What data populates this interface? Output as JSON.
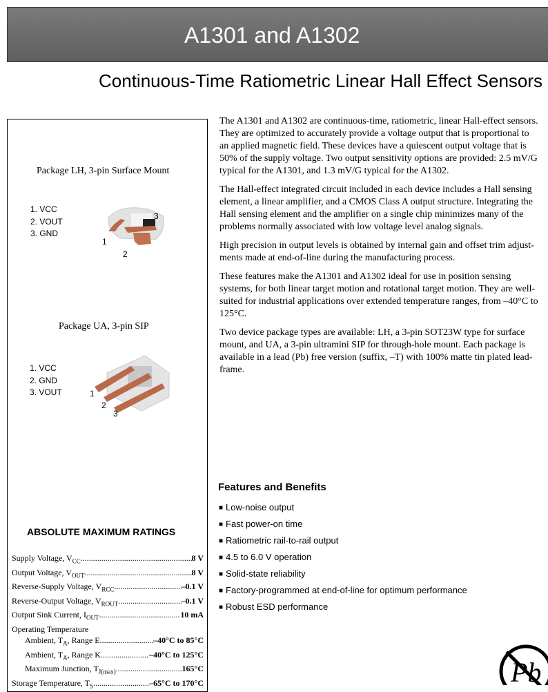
{
  "header": {
    "title": "A1301 and A1302"
  },
  "subtitle": "Continuous-Time Ratiometric Linear Hall Effect Sensors",
  "packages": [
    {
      "title": "Package LH, 3-pin Surface Mount",
      "pins": [
        "1. VCC",
        "2. VOUT",
        "3. GND"
      ],
      "pin_numbers": [
        "1",
        "2",
        "3"
      ]
    },
    {
      "title": "Package UA, 3-pin SIP",
      "pins": [
        "1. VCC",
        "2. GND",
        "3. VOUT"
      ],
      "pin_numbers": [
        "1",
        "2",
        "3"
      ]
    }
  ],
  "ratings": {
    "title": "ABSOLUTE MAXIMUM RATINGS",
    "rows": [
      {
        "label": "Supply Voltage, V",
        "sub": "CC",
        "value": "8 V"
      },
      {
        "label": "Output Voltage, V",
        "sub": "OUT",
        "value": "8 V"
      },
      {
        "label": "Reverse-Supply Voltage, V",
        "sub": "RCC",
        "value": "–0.1 V"
      },
      {
        "label": "Reverse-Output Voltage, V",
        "sub": "ROUT",
        "value": "–0.1 V"
      },
      {
        "label": "Output Sink Current, I",
        "sub": "OUT",
        "value": "10 mA"
      },
      {
        "label": "Operating Temperature"
      },
      {
        "label": "Ambient, T",
        "sub": "A",
        "suffix": ", Range E",
        "value": "–40°C to 85°C"
      },
      {
        "label": "Ambient, T",
        "sub": "A",
        "suffix": ", Range K",
        "value": "–40°C to 125°C"
      },
      {
        "label": "Maximum Junction, T",
        "sub": "J(max)",
        "value": "165°C"
      },
      {
        "label": "Storage Temperature, T",
        "sub": "S",
        "value": "–65°C to 170°C"
      }
    ]
  },
  "description": [
    [
      "The A1301 and A1302 are continuous-time, ratiometric, linear Hall-effect sensors.",
      "They are optimized to accurately provide a voltage output that is proportional to",
      "an applied magnetic field. These devices have a quiescent output voltage that is",
      "50% of the supply voltage. Two output sensitivity options are provided: 2.5 mV/G",
      "typical for the A1301, and 1.3 mV/G typical for the A1302."
    ],
    [
      "The Hall-effect integrated circuit included in each device includes a Hall sensing",
      "element, a linear amplifier, and a CMOS Class A output structure. Integrating the",
      "Hall sensing element and the amplifier on a single chip minimizes many of the",
      "problems normally associated with low voltage level analog signals."
    ],
    [
      "High precision in output levels is obtained by internal gain and offset trim adjust-",
      "ments made at end-of-line during the manufacturing process."
    ],
    [
      "These features make the  A1301 and A1302 ideal for use in position sensing",
      "systems, for both linear target motion and rotational target motion. They are well-",
      "suited for industrial applications over extended temperature ranges, from –40°C to",
      "125°C."
    ],
    [
      "Two device package types are available: LH, a 3-pin SOT23W type for surface",
      "mount, and UA, a 3-pin ultramini SIP for through-hole mount. Each package is",
      "available in a lead (Pb) free version (suffix, –T) with 100% matte tin plated lead-",
      "frame."
    ]
  ],
  "features": {
    "title": "Features and Benefits",
    "items": [
      "Low-noise output",
      "Fast power-on time",
      "Ratiometric rail-to-rail output",
      "4.5 to 6.0 V operation",
      "Solid-state reliability",
      "Factory-programmed at end-of-line for optimum performance",
      "Robust ESD performance"
    ]
  },
  "pb_free_logo": "Pb"
}
